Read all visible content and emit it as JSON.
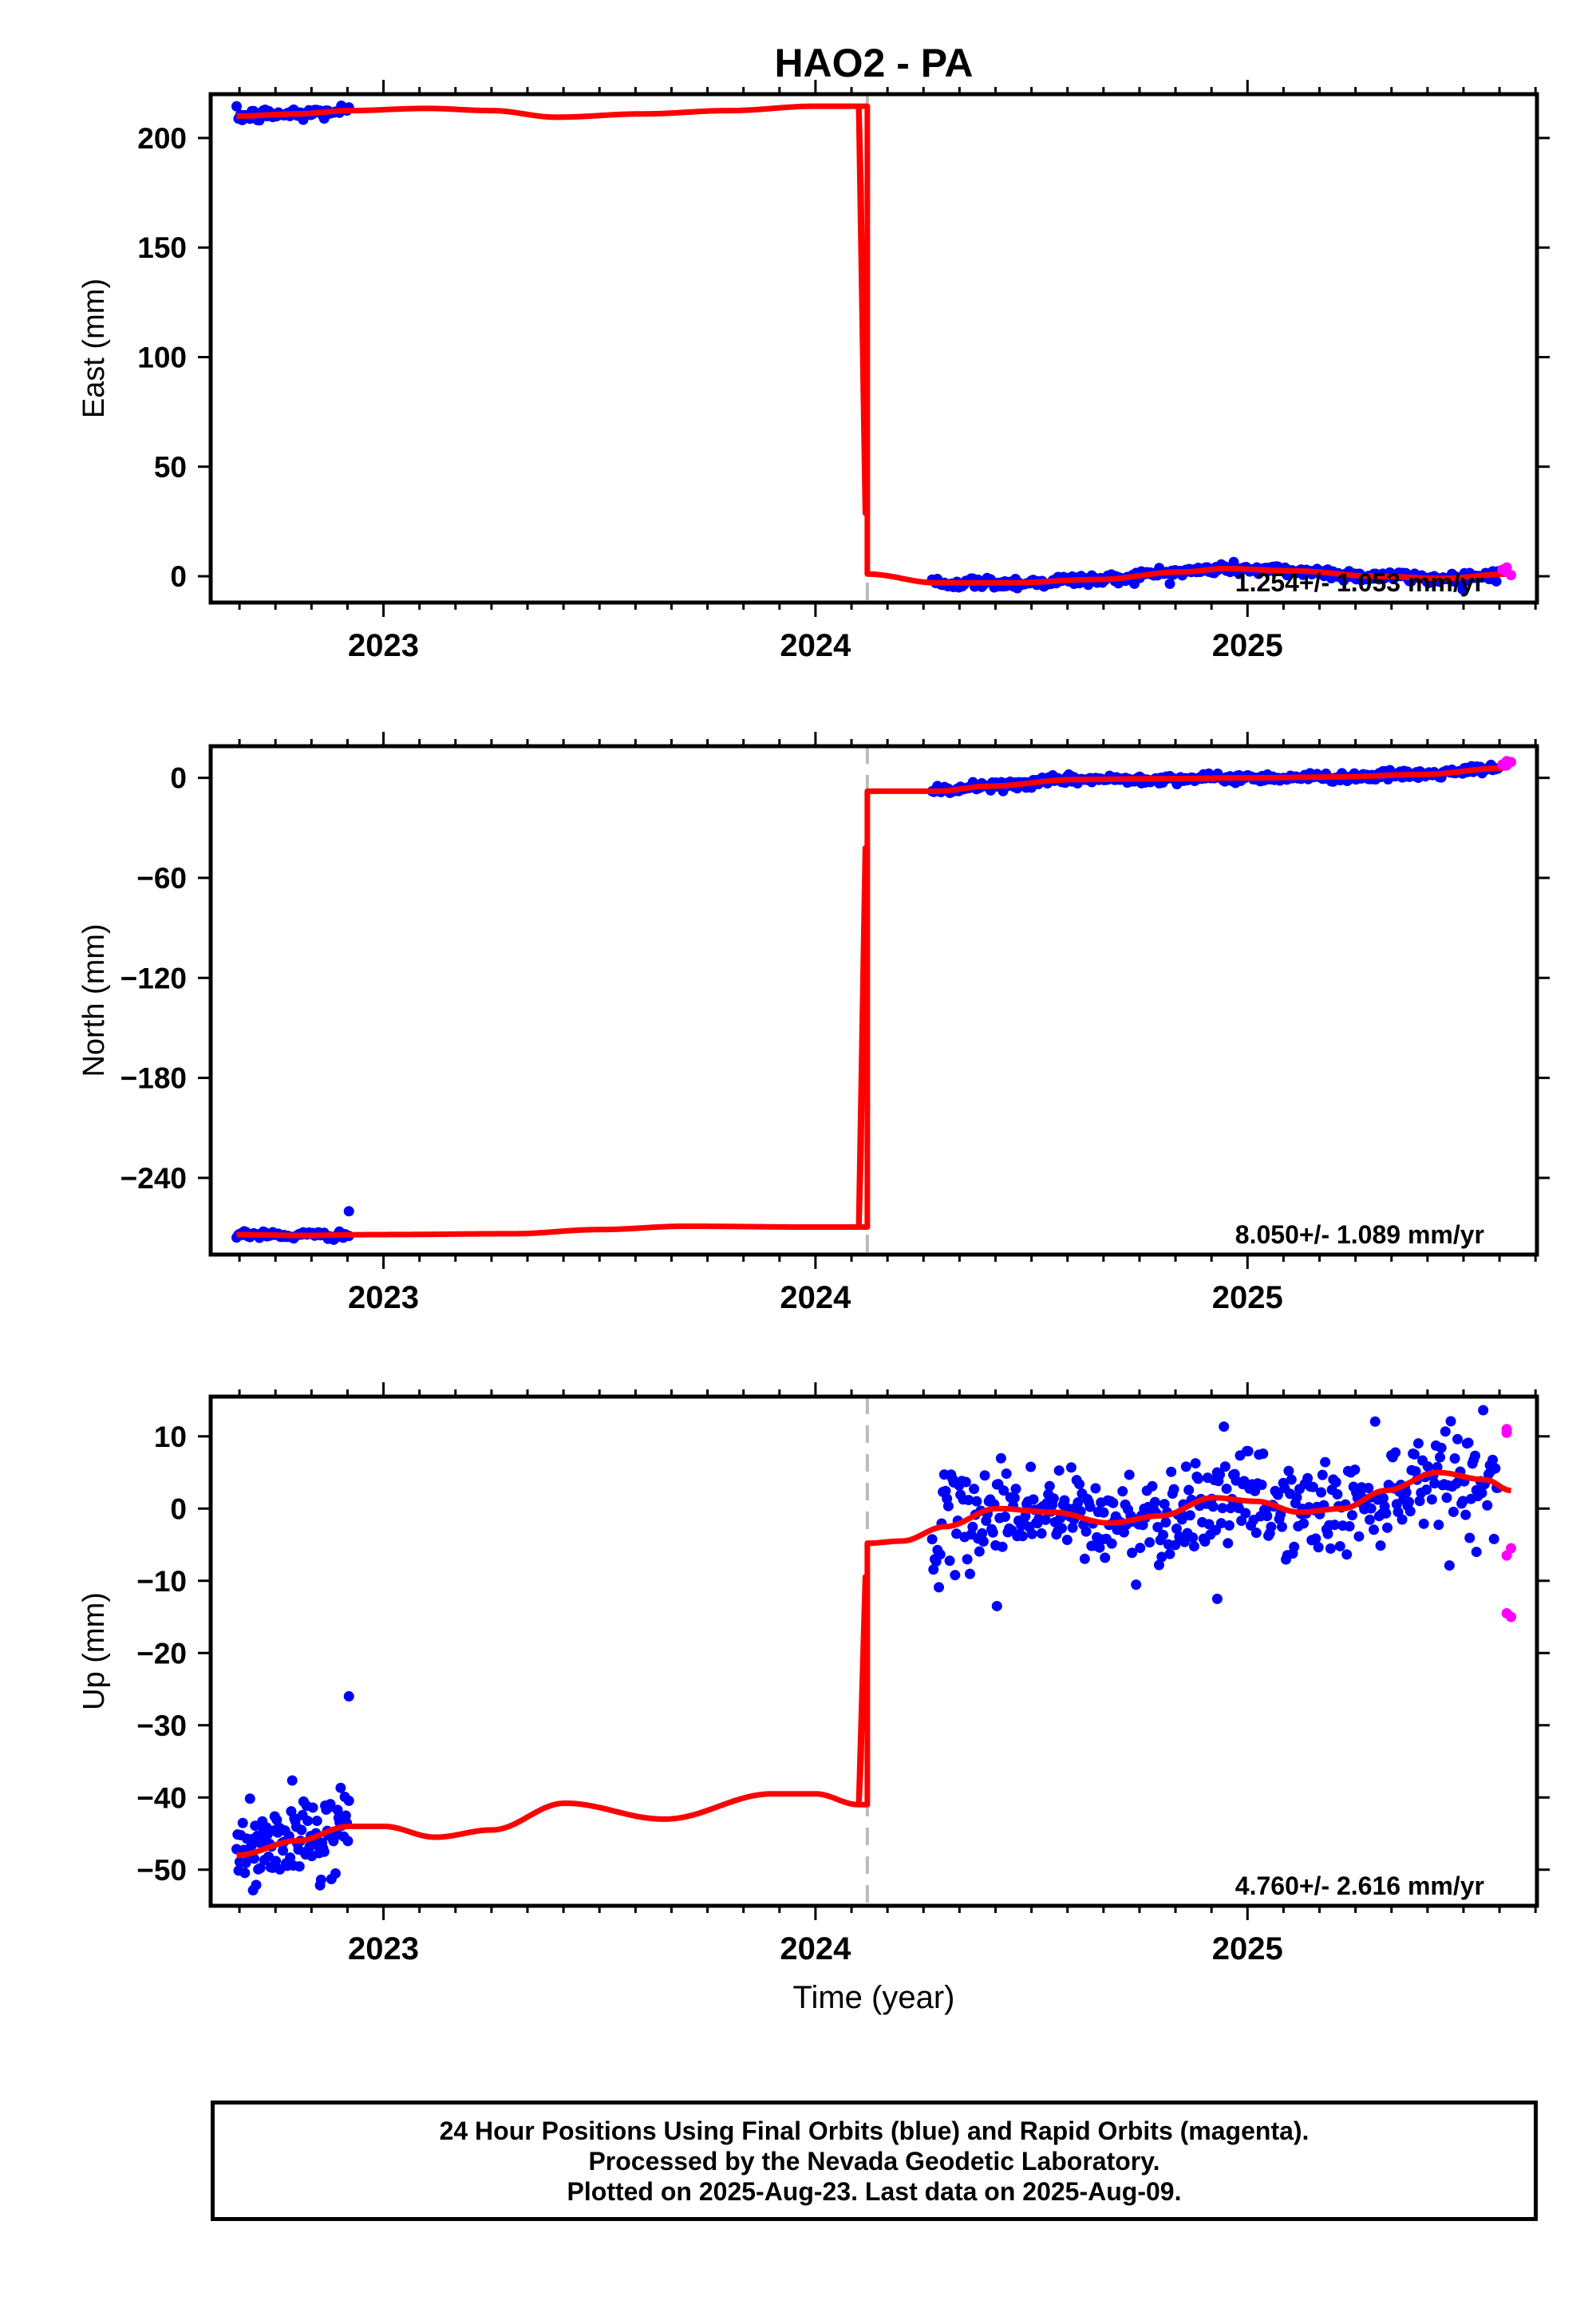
{
  "title": "HAO2 - PA",
  "colors": {
    "final": "#0000ff",
    "rapid": "#ff00ff",
    "model": "#ff0000",
    "offset": "#bbbbbb"
  },
  "chart_data": [
    {
      "type": "scatter",
      "name": "east",
      "ylabel": "East (mm)",
      "xlabel": "",
      "xlim": [
        2022.6,
        2025.67
      ],
      "ylim": [
        -12,
        220
      ],
      "yticks": [
        0,
        50,
        100,
        150,
        200
      ],
      "xticks": [
        2023,
        2024,
        2025
      ],
      "offset_epoch": 2024.12,
      "rate_label": "1.254+/- 1.053 mm/yr",
      "model_knots": [
        [
          2022.66,
          210
        ],
        [
          2022.8,
          211
        ],
        [
          2022.92,
          212.5
        ],
        [
          2023.1,
          213.5
        ],
        [
          2023.25,
          212.5
        ],
        [
          2023.4,
          209.5
        ],
        [
          2023.6,
          211
        ],
        [
          2023.8,
          212.5
        ],
        [
          2024.0,
          214.5
        ],
        [
          2024.1,
          214.5
        ],
        [
          2024.12,
          1
        ],
        [
          2024.28,
          -3
        ],
        [
          2024.45,
          -3
        ],
        [
          2024.65,
          -1.5
        ],
        [
          2024.85,
          2
        ],
        [
          2024.95,
          3.5
        ],
        [
          2025.1,
          2.5
        ],
        [
          2025.3,
          0
        ],
        [
          2025.45,
          -1
        ],
        [
          2025.6,
          1
        ]
      ],
      "final_segments": [
        {
          "from": 2022.66,
          "to": 2022.92,
          "n": 60,
          "noise": 1.6
        },
        {
          "from": 2024.27,
          "to": 2025.58,
          "n": 320,
          "noise": 1.3
        }
      ],
      "rapid_points": [
        [
          2025.59,
          3
        ],
        [
          2025.6,
          4
        ],
        [
          2025.61,
          0.5
        ],
        [
          2025.6,
          2
        ]
      ]
    },
    {
      "type": "scatter",
      "name": "north",
      "ylabel": "North (mm)",
      "xlabel": "",
      "xlim": [
        2022.6,
        2025.67
      ],
      "ylim": [
        -286,
        19
      ],
      "yticks": [
        -240,
        -180,
        -120,
        -60,
        0
      ],
      "xticks": [
        2023,
        2024,
        2025
      ],
      "offset_epoch": 2024.12,
      "rate_label": "8.050+/- 1.089 mm/yr",
      "model_knots": [
        [
          2022.66,
          -274
        ],
        [
          2022.8,
          -274.5
        ],
        [
          2023.0,
          -274
        ],
        [
          2023.3,
          -273.5
        ],
        [
          2023.5,
          -271
        ],
        [
          2023.7,
          -269
        ],
        [
          2024.0,
          -269.5
        ],
        [
          2024.1,
          -269.5
        ],
        [
          2024.12,
          -8
        ],
        [
          2024.28,
          -8
        ],
        [
          2024.4,
          -5
        ],
        [
          2024.6,
          -1
        ],
        [
          2024.8,
          -0.5
        ],
        [
          2025.0,
          0
        ],
        [
          2025.2,
          0.5
        ],
        [
          2025.4,
          2
        ],
        [
          2025.6,
          6
        ]
      ],
      "final_segments": [
        {
          "from": 2022.66,
          "to": 2022.92,
          "n": 60,
          "noise": 1.2
        },
        {
          "from": 2024.27,
          "to": 2025.58,
          "n": 320,
          "noise": 1.3
        }
      ],
      "final_extra_points": [
        [
          2022.92,
          -260
        ]
      ],
      "rapid_points": [
        [
          2025.59,
          8
        ],
        [
          2025.6,
          10
        ],
        [
          2025.61,
          9.5
        ],
        [
          2025.6,
          7.5
        ]
      ]
    },
    {
      "type": "scatter",
      "name": "up",
      "ylabel": "Up (mm)",
      "xlabel": "Time (year)",
      "xlim": [
        2022.6,
        2025.67
      ],
      "ylim": [
        -55,
        15.5
      ],
      "yticks": [
        -50,
        -40,
        -30,
        -20,
        -10,
        0,
        10
      ],
      "xticks": [
        2023,
        2024,
        2025
      ],
      "offset_epoch": 2024.12,
      "rate_label": "4.760+/- 2.616 mm/yr",
      "model_knots": [
        [
          2022.66,
          -48
        ],
        [
          2022.8,
          -46
        ],
        [
          2022.92,
          -44
        ],
        [
          2023.0,
          -44
        ],
        [
          2023.12,
          -45.5
        ],
        [
          2023.25,
          -44.5
        ],
        [
          2023.42,
          -40.8
        ],
        [
          2023.65,
          -43
        ],
        [
          2023.9,
          -39.5
        ],
        [
          2024.0,
          -39.5
        ],
        [
          2024.1,
          -41
        ],
        [
          2024.12,
          -4.8
        ],
        [
          2024.2,
          -4.5
        ],
        [
          2024.3,
          -2.5
        ],
        [
          2024.42,
          0
        ],
        [
          2024.55,
          -0.5
        ],
        [
          2024.68,
          -2
        ],
        [
          2024.8,
          -1
        ],
        [
          2024.92,
          1.5
        ],
        [
          2025.02,
          1
        ],
        [
          2025.12,
          -0.5
        ],
        [
          2025.22,
          0
        ],
        [
          2025.32,
          2.5
        ],
        [
          2025.44,
          5
        ],
        [
          2025.55,
          4
        ],
        [
          2025.61,
          2.5
        ]
      ],
      "final_segments": [
        {
          "from": 2022.66,
          "to": 2022.92,
          "n": 110,
          "noise": 3.0
        },
        {
          "from": 2024.27,
          "to": 2025.58,
          "n": 420,
          "noise": 3.3
        }
      ],
      "final_extra_points": [
        [
          2022.92,
          -26
        ],
        [
          2024.42,
          -13.5
        ],
        [
          2024.93,
          -12.5
        ],
        [
          2025.53,
          -6
        ]
      ],
      "rapid_points": [
        [
          2025.6,
          10.5
        ],
        [
          2025.6,
          11
        ],
        [
          2025.61,
          -5.5
        ],
        [
          2025.6,
          -6.5
        ],
        [
          2025.6,
          -14.5
        ],
        [
          2025.61,
          -15
        ]
      ]
    }
  ],
  "caption": {
    "line1": "24 Hour Positions Using Final Orbits (blue) and Rapid Orbits (magenta).",
    "line2": "Processed by the Nevada Geodetic Laboratory.",
    "line3": "Plotted on 2025-Aug-23. Last data on 2025-Aug-09."
  }
}
